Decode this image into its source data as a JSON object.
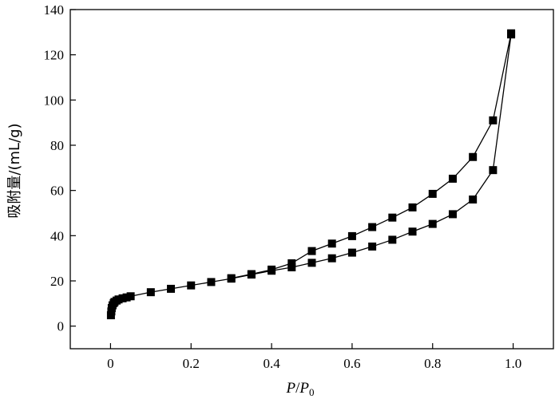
{
  "chart_data": {
    "type": "line",
    "title": "",
    "xlabel": "P/P0",
    "xlabel_parts": {
      "p": "P",
      "slash": "/",
      "p0": "P",
      "sub": "0"
    },
    "ylabel": "吸附量/(mL/g)",
    "xlim": [
      -0.1,
      1.1
    ],
    "ylim": [
      -10,
      140
    ],
    "xticks": [
      0,
      0.2,
      0.4,
      0.6,
      0.8,
      1.0
    ],
    "xtick_labels": [
      "0",
      "0.2",
      "0.4",
      "0.6",
      "0.8",
      "1.0"
    ],
    "yticks": [
      0,
      20,
      40,
      60,
      80,
      100,
      120,
      140
    ],
    "ytick_labels": [
      "0",
      "20",
      "40",
      "60",
      "80",
      "100",
      "120",
      "140"
    ],
    "grid": false,
    "marker": "square",
    "colors": {
      "line": "#000000",
      "marker": "#000000",
      "axis": "#000000"
    },
    "series": [
      {
        "x": [
          0.001,
          0.002,
          0.003,
          0.005,
          0.008,
          0.01,
          0.015,
          0.02,
          0.03,
          0.04,
          0.05,
          0.1,
          0.15,
          0.2,
          0.25,
          0.3,
          0.35,
          0.4,
          0.45,
          0.5,
          0.55,
          0.6,
          0.65,
          0.7,
          0.75,
          0.8,
          0.85,
          0.9,
          0.95,
          0.995
        ],
        "y": [
          4.8,
          6.5,
          8.0,
          9.2,
          10.2,
          10.7,
          11.3,
          11.8,
          12.3,
          12.7,
          13.2,
          15.0,
          16.5,
          18.0,
          19.5,
          21.0,
          22.8,
          24.5,
          26.0,
          28.0,
          30.0,
          32.5,
          35.2,
          38.2,
          41.8,
          45.2,
          49.5,
          56.0,
          69.0,
          129.0
        ]
      },
      {
        "x": [
          0.995,
          0.95,
          0.9,
          0.85,
          0.8,
          0.75,
          0.7,
          0.65,
          0.6,
          0.55,
          0.5,
          0.45,
          0.4,
          0.35,
          0.3
        ],
        "y": [
          129.5,
          91.0,
          74.8,
          65.2,
          58.5,
          52.5,
          48.0,
          43.8,
          39.8,
          36.5,
          33.2,
          27.8,
          25.0,
          23.0,
          21.2
        ]
      }
    ]
  }
}
